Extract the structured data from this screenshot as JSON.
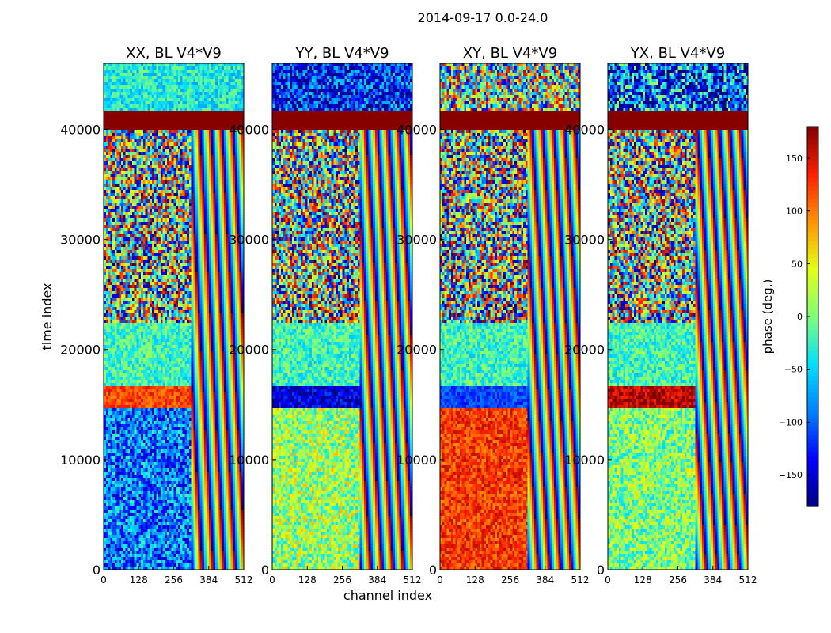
{
  "chart_data": {
    "type": "heatmap",
    "title": "2014-09-17 0.0-24.0",
    "xlabel": "channel index",
    "ylabel": "time index",
    "xlim": [
      0,
      512
    ],
    "ylim": [
      0,
      46000
    ],
    "xticks": [
      0,
      128,
      256,
      384,
      512
    ],
    "yticks": [
      0,
      10000,
      20000,
      30000,
      40000
    ],
    "colorbar": {
      "label": "phase (deg.)",
      "range": [
        -180,
        180
      ],
      "ticks": [
        -150,
        -100,
        -50,
        0,
        50,
        100,
        150
      ],
      "colormap": [
        "#000080",
        "#0000ff",
        "#0080ff",
        "#00e0ff",
        "#7dff7a",
        "#e4ff13",
        "#ff9400",
        "#ff1e00",
        "#800000"
      ]
    },
    "panels": [
      {
        "title": "XX, BL V4*V9",
        "bands": [
          {
            "from": 0,
            "to": 14800,
            "base_phase": -90,
            "noise": 70
          },
          {
            "from": 14800,
            "to": 16800,
            "base_phase": 120,
            "noise": 30
          },
          {
            "from": 16800,
            "to": 22500,
            "base_phase": -20,
            "noise": 40
          },
          {
            "from": 22500,
            "to": 40000,
            "base_phase": 0,
            "noise": 180
          },
          {
            "from": 40000,
            "to": 41600,
            "base_phase": 178,
            "noise": 0
          },
          {
            "from": 41600,
            "to": 46000,
            "base_phase": -35,
            "noise": 40
          }
        ]
      },
      {
        "title": "YY, BL V4*V9",
        "bands": [
          {
            "from": 0,
            "to": 14800,
            "base_phase": 15,
            "noise": 60
          },
          {
            "from": 14800,
            "to": 16800,
            "base_phase": -150,
            "noise": 40
          },
          {
            "from": 16800,
            "to": 22500,
            "base_phase": -20,
            "noise": 40
          },
          {
            "from": 22500,
            "to": 40000,
            "base_phase": 0,
            "noise": 180
          },
          {
            "from": 40000,
            "to": 41600,
            "base_phase": 178,
            "noise": 0
          },
          {
            "from": 41600,
            "to": 46000,
            "base_phase": -120,
            "noise": 80
          }
        ]
      },
      {
        "title": "XY, BL V4*V9",
        "bands": [
          {
            "from": 0,
            "to": 14800,
            "base_phase": 125,
            "noise": 35
          },
          {
            "from": 14800,
            "to": 16800,
            "base_phase": -110,
            "noise": 25
          },
          {
            "from": 16800,
            "to": 22500,
            "base_phase": -20,
            "noise": 40
          },
          {
            "from": 22500,
            "to": 40000,
            "base_phase": 0,
            "noise": 180
          },
          {
            "from": 40000,
            "to": 41600,
            "base_phase": 178,
            "noise": 0
          },
          {
            "from": 41600,
            "to": 46000,
            "base_phase": 0,
            "noise": 160
          }
        ]
      },
      {
        "title": "YX, BL V4*V9",
        "bands": [
          {
            "from": 0,
            "to": 14800,
            "base_phase": 5,
            "noise": 55
          },
          {
            "from": 14800,
            "to": 16800,
            "base_phase": 160,
            "noise": 30
          },
          {
            "from": 16800,
            "to": 22500,
            "base_phase": -20,
            "noise": 40
          },
          {
            "from": 22500,
            "to": 40000,
            "base_phase": 0,
            "noise": 180
          },
          {
            "from": 40000,
            "to": 41600,
            "base_phase": 178,
            "noise": 0
          },
          {
            "from": 41600,
            "to": 46000,
            "base_phase": -100,
            "noise": 120
          }
        ]
      }
    ]
  }
}
